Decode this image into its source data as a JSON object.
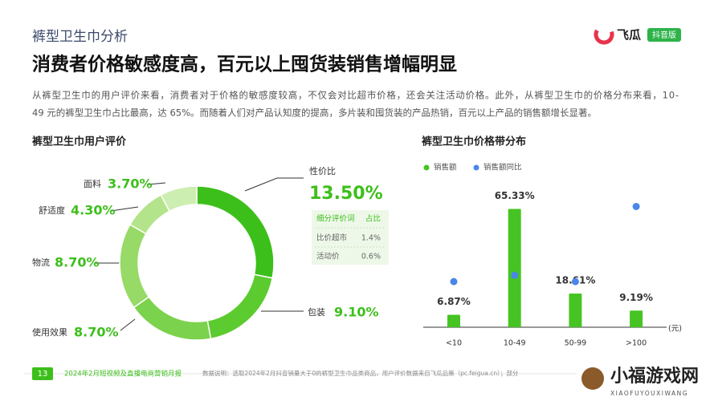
{
  "brand": {
    "name": "飞瓜",
    "badge": "抖音版"
  },
  "header": {
    "section": "裤型卫生巾分析",
    "title": "消费者价格敏感度高，百元以上囤货装销售增幅明显",
    "body": [
      "从裤型卫生巾的用户评价来看，消费者对于价格的敏感度较高，不仅会对比超市价格，还会关注活动价格。此外，从裤型卫生巾的价格分布来看，10-",
      "49 元的裤型卫生巾占比最高，达 65%。而随着人们对产品认知度的提高，多片装和囤货装的产品热销，百元以上产品的销售额增长显著。"
    ]
  },
  "chart_data": [
    {
      "type": "pie",
      "title": "裤型卫生巾用户评价",
      "categories": [
        "性价比",
        "包装",
        "使用效果",
        "物流",
        "舒适度",
        "面料"
      ],
      "values": [
        13.5,
        9.1,
        8.7,
        8.7,
        4.3,
        3.7
      ],
      "value_labels": [
        "13.50%",
        "9.10%",
        "8.70%",
        "8.70%",
        "4.30%",
        "3.70%"
      ],
      "colors": [
        "#3dbf1b",
        "#5ccb2f",
        "#7bd24c",
        "#97da67",
        "#b3e48b",
        "#cdeeb1"
      ]
    },
    {
      "type": "bar",
      "title": "裤型卫生巾价格带分布",
      "categories": [
        "<10",
        "10-49",
        "50-99",
        ">100"
      ],
      "x_label": "(元)",
      "ylim": [
        0,
        70
      ],
      "series": [
        {
          "name": "销售额",
          "color": "#46c423",
          "values": [
            6.87,
            65.33,
            18.61,
            9.19
          ],
          "value_labels": [
            "6.87%",
            "65.33%",
            "18.61%",
            "9.19%"
          ]
        },
        {
          "name": "销售额同比",
          "color": "#4a86e8",
          "values": [
            25.2,
            28.7,
            25.2,
            66.7
          ]
        }
      ]
    }
  ],
  "inset_table": {
    "header": [
      "细分评价词",
      "占比"
    ],
    "rows": [
      [
        "比价超市",
        "1.4%"
      ],
      [
        "活动价",
        "0.6%"
      ]
    ]
  },
  "footer": {
    "page": "13",
    "report": "2024年2月短视频及直播电商营销月报",
    "note": "数据说明：选取2024年2月抖音销量大于0的裤型卫生巾品类商品，用户评价数据来自飞瓜品策（pc.feigua.cn）；部分"
  },
  "watermark": {
    "name": "小福游戏网",
    "pinyin": "XIAOFUYOUXIWANG"
  }
}
